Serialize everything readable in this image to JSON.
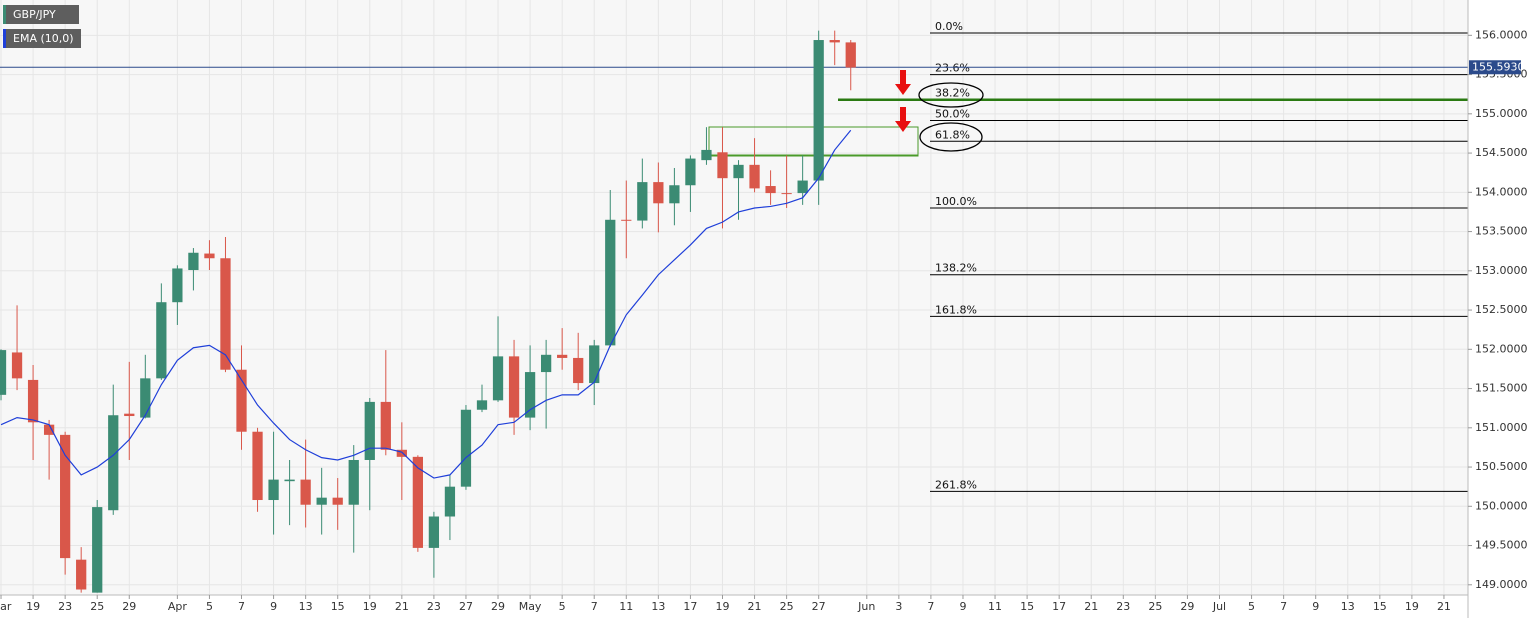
{
  "chart_data": {
    "type": "candlestick",
    "ylim": [
      148.87,
      156.45
    ],
    "yticks": [
      {
        "value": 149,
        "label": "149.0000"
      },
      {
        "value": 149.5,
        "label": "149.5000"
      },
      {
        "value": 150,
        "label": "150.0000"
      },
      {
        "value": 150.5,
        "label": "150.5000"
      },
      {
        "value": 151,
        "label": "151.0000"
      },
      {
        "value": 151.5,
        "label": "151.5000"
      },
      {
        "value": 152,
        "label": "152.0000"
      },
      {
        "value": 152.5,
        "label": "152.5000"
      },
      {
        "value": 153,
        "label": "153.0000"
      },
      {
        "value": 153.5,
        "label": "153.5000"
      },
      {
        "value": 154,
        "label": "154.0000"
      },
      {
        "value": 154.5,
        "label": "154.5000"
      },
      {
        "value": 155,
        "label": "155.0000"
      },
      {
        "value": 155.5,
        "label": "155.5000"
      },
      {
        "value": 156,
        "label": "156.0000"
      }
    ],
    "grid": true,
    "categories": [
      "Mar",
      null,
      "19",
      null,
      "23",
      null,
      "25",
      null,
      "29",
      null,
      null,
      "Apr",
      null,
      "5",
      null,
      "7",
      null,
      "9",
      null,
      "13",
      null,
      "15",
      null,
      "19",
      null,
      "21",
      null,
      "23",
      null,
      "27",
      null,
      "29",
      null,
      "May",
      null,
      "5",
      null,
      "7",
      null,
      "11",
      null,
      "13",
      null,
      "17",
      null,
      "19",
      null,
      "21",
      null,
      "25",
      null,
      "27",
      null,
      null,
      "Jun",
      null,
      "3",
      null,
      "7",
      null,
      "9",
      null,
      "11",
      null,
      "15",
      null,
      "17",
      null,
      "21",
      null,
      "23",
      null,
      "25",
      null,
      "29",
      null,
      "Jul",
      null,
      "5",
      null,
      "7",
      null,
      "9",
      null,
      "13",
      null,
      "15",
      null,
      "19",
      null,
      "21",
      null
    ],
    "series": [
      {
        "name": "GBP/JPY",
        "type": "candlestick",
        "up_color": "#3b8b73",
        "down_color": "#d9574a",
        "legend_color": "#3b8b73",
        "open": [
          151.42,
          151.96,
          151.61,
          151.04,
          150.91,
          149.32,
          148.9,
          149.95,
          151.18,
          151.13,
          151.63,
          152.6,
          153.01,
          153.22,
          153.16,
          151.74,
          150.95,
          150.08,
          150.32,
          150.34,
          150.02,
          150.11,
          150.02,
          150.59,
          151.33,
          150.72,
          150.63,
          149.47,
          149.87,
          150.25,
          151.23,
          151.35,
          151.91,
          151.13,
          151.71,
          151.93,
          151.89,
          151.57,
          152.05,
          153.65,
          153.64,
          154.13,
          153.86,
          154.09,
          154.41,
          154.51,
          154.18,
          154.35,
          154.08,
          153.99,
          153.99,
          154.15,
          155.94,
          155.91,
          null,
          null,
          null,
          null,
          null,
          null,
          null,
          null,
          null,
          null,
          null,
          null,
          null,
          null,
          null,
          null,
          null,
          null,
          null,
          null,
          null,
          null,
          null,
          null,
          null,
          null,
          null,
          null,
          null,
          null,
          null,
          null,
          null,
          null,
          null,
          null,
          null,
          null
        ],
        "high": [
          152.0,
          152.56,
          151.8,
          151.1,
          150.95,
          149.48,
          150.08,
          151.55,
          151.84,
          151.93,
          152.84,
          153.07,
          153.29,
          153.39,
          153.43,
          152.05,
          151.0,
          150.95,
          150.59,
          150.85,
          150.49,
          150.36,
          150.78,
          151.38,
          151.99,
          151.07,
          150.65,
          149.93,
          150.4,
          151.29,
          151.55,
          152.42,
          152.12,
          152.05,
          152.12,
          152.27,
          152.21,
          152.12,
          154.03,
          154.15,
          154.43,
          154.38,
          154.31,
          154.47,
          154.83,
          154.83,
          154.41,
          154.69,
          154.28,
          154.47,
          154.47,
          156.06,
          156.06,
          155.94,
          null,
          null,
          null,
          null,
          null,
          null,
          null,
          null,
          null,
          null,
          null,
          null,
          null,
          null,
          null,
          null,
          null,
          null,
          null,
          null,
          null,
          null,
          null,
          null,
          null,
          null,
          null,
          null,
          null,
          null,
          null,
          null,
          null,
          null,
          null,
          null,
          null,
          null
        ],
        "low": [
          151.35,
          151.48,
          150.59,
          150.34,
          149.13,
          148.9,
          148.9,
          149.89,
          150.59,
          151.12,
          151.61,
          152.31,
          152.75,
          153.01,
          151.71,
          150.72,
          149.93,
          149.64,
          149.76,
          149.73,
          149.64,
          149.7,
          149.41,
          149.95,
          150.65,
          150.08,
          149.42,
          149.09,
          149.57,
          150.21,
          151.2,
          151.33,
          150.91,
          150.97,
          150.99,
          151.74,
          151.48,
          151.29,
          152.03,
          153.16,
          153.54,
          153.49,
          153.58,
          153.75,
          154.35,
          153.54,
          153.65,
          154.0,
          153.84,
          153.8,
          153.84,
          153.84,
          155.62,
          155.3,
          null,
          null,
          null,
          null,
          null,
          null,
          null,
          null,
          null,
          null,
          null,
          null,
          null,
          null,
          null,
          null,
          null,
          null,
          null,
          null,
          null,
          null,
          null,
          null,
          null,
          null,
          null,
          null,
          null,
          null,
          null,
          null,
          null,
          null,
          null,
          null,
          null,
          null
        ],
        "close": [
          151.99,
          151.63,
          151.07,
          150.91,
          149.34,
          148.94,
          149.99,
          151.16,
          151.15,
          151.63,
          152.6,
          153.03,
          153.23,
          153.16,
          151.74,
          150.95,
          150.08,
          150.34,
          150.34,
          150.02,
          150.11,
          150.02,
          150.59,
          151.33,
          150.72,
          150.63,
          149.47,
          149.87,
          150.25,
          151.23,
          151.35,
          151.91,
          151.13,
          151.71,
          151.93,
          151.89,
          151.57,
          152.05,
          153.65,
          153.64,
          154.13,
          153.86,
          154.09,
          154.43,
          154.54,
          154.18,
          154.35,
          154.05,
          153.99,
          153.98,
          154.15,
          155.94,
          155.91,
          155.59,
          null,
          null,
          null,
          null,
          null,
          null,
          null,
          null,
          null,
          null,
          null,
          null,
          null,
          null,
          null,
          null,
          null,
          null,
          null,
          null,
          null,
          null,
          null,
          null,
          null,
          null,
          null,
          null,
          null,
          null,
          null,
          null,
          null,
          null,
          null,
          null,
          null,
          null
        ]
      },
      {
        "name": "EMA (10,0)",
        "type": "line",
        "color": "#1f3fd9",
        "values": [
          151.04,
          151.13,
          151.1,
          151.04,
          150.65,
          150.4,
          150.5,
          150.65,
          150.85,
          151.16,
          151.55,
          151.86,
          152.02,
          152.05,
          151.93,
          151.61,
          151.29,
          151.06,
          150.85,
          150.72,
          150.62,
          150.59,
          150.65,
          150.74,
          150.74,
          150.69,
          150.49,
          150.36,
          150.4,
          150.62,
          150.78,
          151.04,
          151.07,
          151.23,
          151.35,
          151.42,
          151.42,
          151.58,
          152.05,
          152.44,
          152.69,
          152.95,
          153.14,
          153.33,
          153.54,
          153.62,
          153.75,
          153.8,
          153.82,
          153.86,
          153.93,
          154.18,
          154.54,
          154.79,
          null,
          null,
          null,
          null,
          null,
          null,
          null,
          null,
          null,
          null,
          null,
          null,
          null,
          null,
          null,
          null,
          null,
          null,
          null,
          null,
          null,
          null,
          null,
          null,
          null,
          null,
          null,
          null,
          null,
          null,
          null,
          null,
          null,
          null,
          null,
          null,
          null,
          null
        ]
      }
    ],
    "last_price": {
      "value": 155.593,
      "label": "155.5930",
      "color": "#2b4a8b"
    },
    "fib_levels": [
      {
        "label": "0.0%",
        "value": 156.03,
        "color": "#000000"
      },
      {
        "label": "23.6%",
        "value": 155.5,
        "color": "#000000"
      },
      {
        "label": "38.2%",
        "value": 155.18,
        "color": "#2a7a12"
      },
      {
        "label": "50.0%",
        "value": 154.915,
        "color": "#000000"
      },
      {
        "label": "61.8%",
        "value": 154.65,
        "color": "#000000"
      },
      {
        "label": "100.0%",
        "value": 153.8,
        "color": "#000000"
      },
      {
        "label": "138.2%",
        "value": 152.95,
        "color": "#000000"
      },
      {
        "label": "161.8%",
        "value": 152.42,
        "color": "#000000"
      },
      {
        "label": "261.8%",
        "value": 150.19,
        "color": "#000000"
      }
    ]
  }
}
